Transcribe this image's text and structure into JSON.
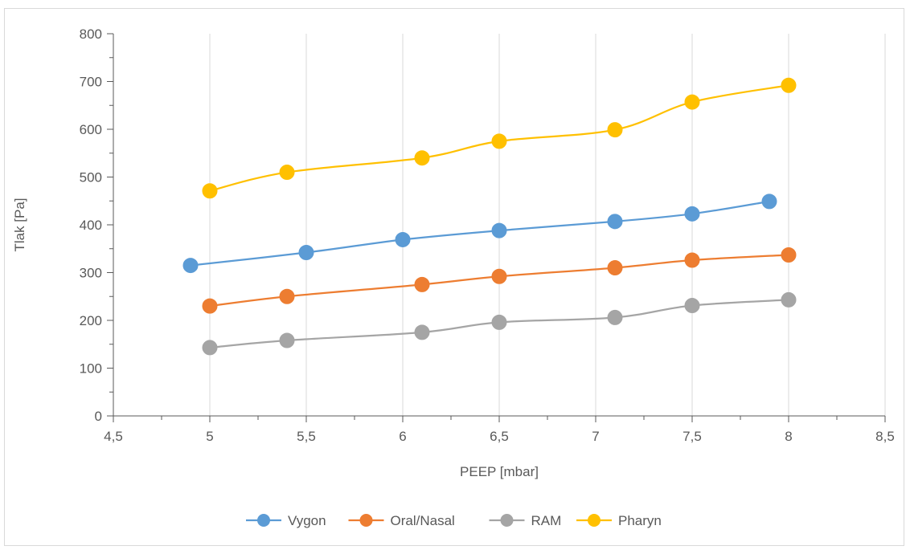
{
  "chart_data": {
    "type": "line",
    "title": "",
    "xlabel": "PEEP [mbar]",
    "ylabel": "Tlak [Pa]",
    "xlim": [
      4.5,
      8.5
    ],
    "ylim": [
      0,
      800
    ],
    "x_ticks": [
      "4,5",
      "5",
      "5,5",
      "6",
      "6,5",
      "7",
      "7,5",
      "8",
      "8,5"
    ],
    "x_tick_values": [
      4.5,
      5,
      5.5,
      6,
      6.5,
      7,
      7.5,
      8,
      8.5
    ],
    "y_ticks": [
      "0",
      "100",
      "200",
      "300",
      "400",
      "500",
      "600",
      "700",
      "800"
    ],
    "y_tick_values": [
      0,
      100,
      200,
      300,
      400,
      500,
      600,
      700,
      800
    ],
    "grid": "vertical",
    "legend_position": "bottom",
    "series": [
      {
        "name": "Vygon",
        "color": "#5b9bd5",
        "points": [
          [
            4.9,
            315
          ],
          [
            5.5,
            342
          ],
          [
            6,
            369
          ],
          [
            6.5,
            388
          ],
          [
            7.1,
            407
          ],
          [
            7.5,
            423
          ],
          [
            7.9,
            449
          ]
        ]
      },
      {
        "name": "Oral/Nasal",
        "color": "#ed7d31",
        "points": [
          [
            5,
            230
          ],
          [
            5.4,
            250
          ],
          [
            6.1,
            275
          ],
          [
            6.5,
            292
          ],
          [
            7.1,
            310
          ],
          [
            7.5,
            326
          ],
          [
            8,
            337
          ]
        ]
      },
      {
        "name": "RAM",
        "color": "#a5a5a5",
        "points": [
          [
            5,
            143
          ],
          [
            5.4,
            158
          ],
          [
            6.1,
            175
          ],
          [
            6.5,
            196
          ],
          [
            7.1,
            206
          ],
          [
            7.5,
            231
          ],
          [
            8,
            243
          ]
        ]
      },
      {
        "name": "Pharyn",
        "color": "#ffc000",
        "points": [
          [
            5,
            471
          ],
          [
            5.4,
            510
          ],
          [
            6.1,
            540
          ],
          [
            6.5,
            575
          ],
          [
            7.1,
            599
          ],
          [
            7.5,
            657
          ],
          [
            8,
            692
          ]
        ]
      }
    ]
  }
}
